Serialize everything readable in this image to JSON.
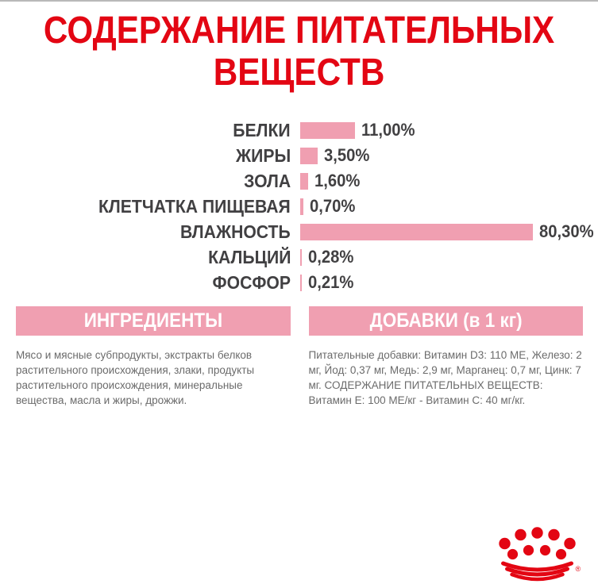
{
  "title": {
    "line1": "СОДЕРЖАНИЕ ПИТАТЕЛЬНЫХ",
    "line2": "ВЕЩЕСТВ"
  },
  "chart_data": {
    "type": "bar",
    "orientation": "horizontal",
    "title": "СОДЕРЖАНИЕ ПИТАТЕЛЬНЫХ ВЕЩЕСТВ",
    "unit": "%",
    "categories": [
      "БЕЛКИ",
      "ЖИРЫ",
      "ЗОЛА",
      "КЛЕТЧАТКА ПИЩЕВАЯ",
      "ВЛАЖНОСТЬ",
      "КАЛЬЦИЙ",
      "ФОСФОР"
    ],
    "values": [
      11.0,
      3.5,
      1.6,
      0.7,
      80.3,
      0.28,
      0.21
    ],
    "value_labels": [
      "11,00%",
      "3,50%",
      "1,60%",
      "0,70%",
      "80,30%",
      "0,28%",
      "0,21%"
    ],
    "bar_color": "#f09fb1",
    "label_color": "#414042",
    "axis": "none",
    "grid": false,
    "legend": "none"
  },
  "sections": {
    "ingredients": {
      "header": "ИНГРЕДИЕНТЫ",
      "body": "Мясо и мясные субпродукты, экстракты белков растительного происхождения, злаки, продукты растительного происхождения, минеральные вещества, масла и жиры, дрожжи."
    },
    "additives": {
      "header": "ДОБАВКИ (в 1 кг)",
      "body": "Питательные добавки: Витамин D3: 110 МЕ, Железо: 2 мг, Йод: 0,37 мг, Медь: 2,9 мг, Марганец: 0,7 мг, Цинк: 7 мг. СОДЕРЖАНИЕ ПИТАТЕЛЬНЫХ ВЕЩЕСТВ: Витамин Е: 100 МЕ/кг - Витамин С: 40 мг/кг."
    }
  },
  "logo": {
    "icon": "royal-canin-crown-icon",
    "registered_mark": "®",
    "color": "#e30613"
  },
  "colors": {
    "title_red": "#e30613",
    "pink": "#f09fb1",
    "body_text_gray": "#6b6b6b",
    "label_dark": "#414042",
    "header_text": "#ffffff",
    "top_edge_gray": "#b9b9b9"
  }
}
